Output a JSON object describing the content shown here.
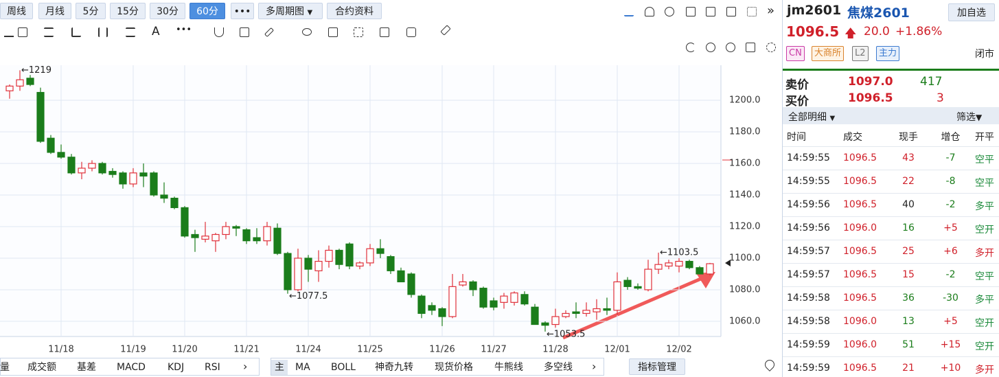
{
  "toolbar": {
    "periods": [
      "周线",
      "月线",
      "5分",
      "15分",
      "30分",
      "60分"
    ],
    "active": 5,
    "more": "•••",
    "multi": "多周期图",
    "contract": "合约资料",
    "text_tool": "A",
    "draw_more": "•••"
  },
  "chart_data": {
    "type": "candlestick",
    "categories": [
      null,
      null,
      null,
      null,
      null,
      "11/18",
      null,
      null,
      null,
      null,
      null,
      null,
      "11/19",
      null,
      null,
      null,
      null,
      "11/20",
      null,
      null,
      null,
      null,
      null,
      "11/21",
      null,
      null,
      null,
      null,
      null,
      "11/24",
      null,
      null,
      null,
      null,
      null,
      "11/25",
      null,
      null,
      null,
      null,
      null,
      null,
      "11/26",
      null,
      null,
      null,
      null,
      "11/27",
      null,
      null,
      null,
      null,
      null,
      "11/28",
      null,
      null,
      null,
      null,
      null,
      "12/01",
      null,
      null,
      null,
      null,
      null,
      "12/02",
      null,
      null,
      null
    ],
    "open": [
      1206,
      1209,
      1214,
      1205,
      1176,
      1167,
      1164,
      1154,
      1157,
      1160,
      1155,
      1154,
      1147,
      1154,
      1154,
      1140,
      1138,
      1132,
      1115,
      1112,
      1111,
      1115,
      1120,
      1118,
      1113,
      1111,
      1119,
      1103,
      1080,
      1100,
      1092,
      1098,
      1105,
      1109,
      1095,
      1097,
      1106,
      1101,
      1092,
      1090,
      1076,
      1070,
      1068,
      1063,
      1083,
      1085,
      1081,
      1073,
      1072,
      1072,
      1077,
      1069,
      1059,
      1058,
      1063,
      1066,
      1065,
      1066,
      1068,
      1067,
      1086,
      1082,
      1080,
      1093,
      1095,
      1095,
      1098,
      1094,
      1090
    ],
    "high": [
      1210,
      1219,
      1216,
      1208,
      1178,
      1172,
      1166,
      1161,
      1162,
      1161,
      1157,
      1155,
      1157,
      1160,
      1155,
      1148,
      1139,
      1133,
      1118,
      1123,
      1116,
      1123,
      1121,
      1119,
      1119,
      1123,
      1122,
      1104,
      1106,
      1102,
      1105,
      1108,
      1106,
      1110,
      1098,
      1109,
      1112,
      1102,
      1094,
      1091,
      1077,
      1072,
      1069,
      1090,
      1090,
      1086,
      1082,
      1075,
      1078,
      1079,
      1079,
      1071,
      1060,
      1068,
      1067,
      1072,
      1072,
      1074,
      1075,
      1091,
      1088,
      1084,
      1099,
      1103.5,
      1099,
      1100,
      1099,
      1095,
      1097
    ],
    "low": [
      1201,
      1206,
      1209,
      1173,
      1166,
      1163,
      1153,
      1150,
      1155,
      1153,
      1151,
      1144,
      1145,
      1145,
      1139,
      1135,
      1131,
      1113,
      1104,
      1110,
      1104,
      1112,
      1114,
      1109,
      1109,
      1108,
      1102,
      1077.5,
      1079,
      1085,
      1085,
      1094,
      1093,
      1093,
      1093,
      1095,
      1100,
      1090,
      1085,
      1075,
      1062,
      1064,
      1057,
      1062,
      1082,
      1076,
      1068,
      1067,
      1068,
      1070,
      1070,
      1058,
      1053.5,
      1056,
      1062,
      1062,
      1063,
      1061,
      1064,
      1064,
      1080,
      1080,
      1079,
      1090,
      1093,
      1091,
      1093,
      1090,
      1089
    ],
    "close": [
      1209,
      1213,
      1210,
      1174,
      1167,
      1164,
      1154,
      1157,
      1160,
      1154,
      1153,
      1147,
      1154,
      1152,
      1140,
      1138,
      1132,
      1114,
      1113,
      1114,
      1115,
      1120,
      1119,
      1111,
      1111,
      1120,
      1103,
      1080,
      1100,
      1093,
      1098,
      1105,
      1096,
      1095,
      1097,
      1106,
      1103,
      1092,
      1085,
      1077,
      1065,
      1067,
      1063,
      1082,
      1085,
      1080,
      1069,
      1069,
      1076,
      1078,
      1071,
      1058,
      1057.5,
      1063,
      1065,
      1065,
      1067,
      1068,
      1067,
      1085,
      1082,
      1081,
      1093,
      1096,
      1097,
      1098,
      1094,
      1090,
      1096.5
    ],
    "up_color": "#e0303a",
    "down_color": "#1b7d1b",
    "ylim": [
      1050.4,
      1222.2
    ],
    "yticks": [
      {
        "value": 1060,
        "label": "1060.0"
      },
      {
        "value": 1080,
        "label": "1080.0"
      },
      {
        "value": 1100,
        "label": "1100.0"
      },
      {
        "value": 1120,
        "label": "1120.0"
      },
      {
        "value": 1140,
        "label": "1140.0"
      },
      {
        "value": 1160,
        "label": "1160.0"
      },
      {
        "value": 1180,
        "label": "1180.0"
      },
      {
        "value": 1200,
        "label": "1200.0"
      }
    ],
    "grid": true,
    "annotations": [
      {
        "label": "←1219",
        "value": 1219
      },
      {
        "label": "←1077.5",
        "value": 1077.5
      },
      {
        "label": "←1053.5",
        "value": 1053.5
      },
      {
        "label": "←1103.5",
        "value": 1103.5
      }
    ]
  },
  "indicator_bar": {
    "left": [
      "量",
      "成交额",
      "基差",
      "MACD",
      "KDJ",
      "RSI"
    ],
    "main_label": "主",
    "main": [
      "MA",
      "BOLL",
      "神奇九转",
      "现货价格",
      "牛熊线",
      "多空线"
    ],
    "manage": "指标管理"
  },
  "quote": {
    "code": "jm2601",
    "name": "焦煤2601",
    "watch": "加自选",
    "price": "1096.5",
    "change": "20.0",
    "pct": "+1.86%",
    "tags": [
      "CN",
      "大商所",
      "L2",
      "主力"
    ],
    "status": "闭市",
    "ask_label": "卖价",
    "ask": "1097.0",
    "ask_vol": "417",
    "bid_label": "买价",
    "bid": "1096.5",
    "bid_vol": "3"
  },
  "trades": {
    "tab": "全部明细",
    "filter": "筛选",
    "columns": [
      "时间",
      "成交",
      "现手",
      "增仓",
      "开平"
    ],
    "rows": [
      {
        "time": "14:59:55",
        "price": "1096.5",
        "volume": "43",
        "volume_color": "#d0202a",
        "change": "-7",
        "change_color": "#1b7d1b",
        "type": "空平",
        "type_color": "#1b8a3a"
      },
      {
        "time": "14:59:55",
        "price": "1096.5",
        "volume": "22",
        "volume_color": "#d0202a",
        "change": "-8",
        "change_color": "#1b7d1b",
        "type": "空平",
        "type_color": "#1b8a3a"
      },
      {
        "time": "14:59:56",
        "price": "1096.5",
        "volume": "40",
        "volume_color": "#222222",
        "change": "-2",
        "change_color": "#1b7d1b",
        "type": "多平",
        "type_color": "#1b8a3a"
      },
      {
        "time": "14:59:56",
        "price": "1096.0",
        "volume": "16",
        "volume_color": "#1b7d1b",
        "change": "+5",
        "change_color": "#d0202a",
        "type": "空开",
        "type_color": "#1b8a3a"
      },
      {
        "time": "14:59:57",
        "price": "1096.5",
        "volume": "25",
        "volume_color": "#d0202a",
        "change": "+6",
        "change_color": "#d0202a",
        "type": "多开",
        "type_color": "#d0202a"
      },
      {
        "time": "14:59:57",
        "price": "1096.5",
        "volume": "15",
        "volume_color": "#d0202a",
        "change": "-2",
        "change_color": "#1b7d1b",
        "type": "空平",
        "type_color": "#1b8a3a"
      },
      {
        "time": "14:59:58",
        "price": "1096.5",
        "volume": "36",
        "volume_color": "#1b7d1b",
        "change": "-30",
        "change_color": "#1b7d1b",
        "type": "多平",
        "type_color": "#1b8a3a"
      },
      {
        "time": "14:59:58",
        "price": "1096.0",
        "volume": "13",
        "volume_color": "#1b7d1b",
        "change": "+5",
        "change_color": "#d0202a",
        "type": "空开",
        "type_color": "#1b8a3a"
      },
      {
        "time": "14:59:59",
        "price": "1096.0",
        "volume": "51",
        "volume_color": "#1b7d1b",
        "change": "+15",
        "change_color": "#d0202a",
        "type": "空开",
        "type_color": "#1b8a3a"
      },
      {
        "time": "14:59:59",
        "price": "1096.5",
        "volume": "21",
        "volume_color": "#d0202a",
        "change": "+10",
        "change_color": "#d0202a",
        "type": "多开",
        "type_color": "#d0202a"
      }
    ]
  }
}
